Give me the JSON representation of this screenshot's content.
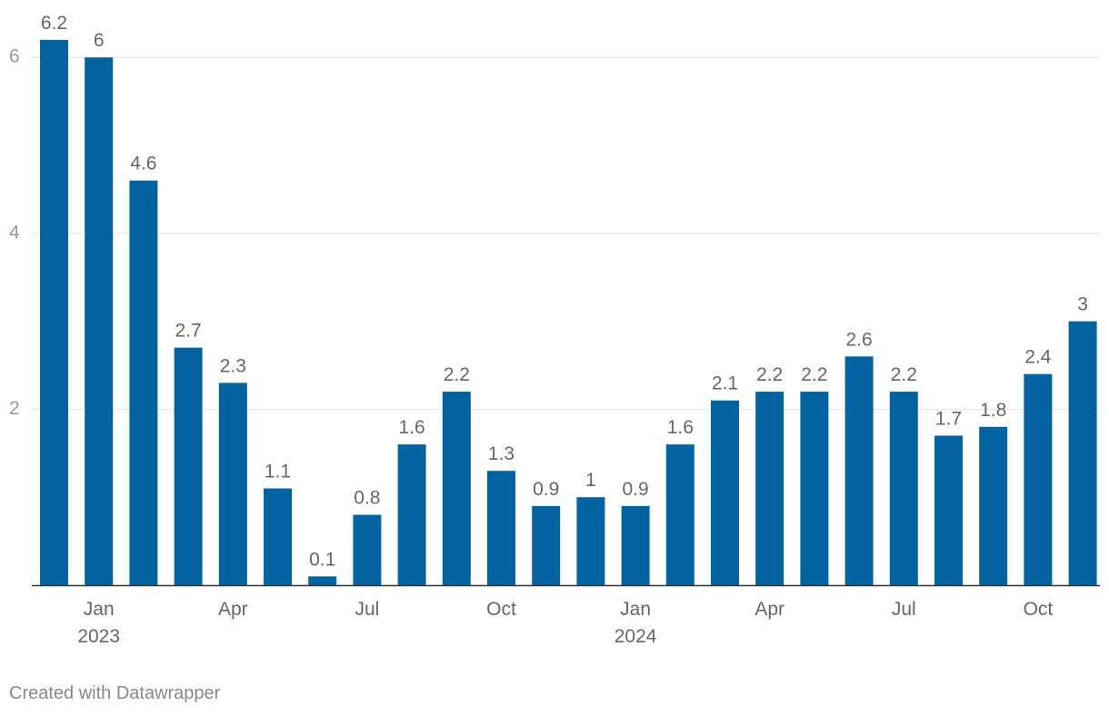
{
  "chart_data": {
    "type": "bar",
    "categories": [
      "Dec 2022",
      "Jan 2023",
      "Feb 2023",
      "Mar 2023",
      "Apr 2023",
      "May 2023",
      "Jun 2023",
      "Jul 2023",
      "Aug 2023",
      "Sep 2023",
      "Oct 2023",
      "Nov 2023",
      "Dec 2023",
      "Jan 2024",
      "Feb 2024",
      "Mar 2024",
      "Apr 2024",
      "May 2024",
      "Jun 2024",
      "Jul 2024",
      "Aug 2024",
      "Sep 2024",
      "Oct 2024",
      "Nov 2024"
    ],
    "values": [
      6.2,
      6,
      4.6,
      2.7,
      2.3,
      1.1,
      0.1,
      0.8,
      1.6,
      2.2,
      1.3,
      0.9,
      1,
      0.9,
      1.6,
      2.1,
      2.2,
      2.2,
      2.6,
      2.2,
      1.7,
      1.8,
      2.4,
      3
    ],
    "value_labels": [
      "6.2",
      "6",
      "4.6",
      "2.7",
      "2.3",
      "1.1",
      "0.1",
      "0.8",
      "1.6",
      "2.2",
      "1.3",
      "0.9",
      "1",
      "0.9",
      "1.6",
      "2.1",
      "2.2",
      "2.2",
      "2.6",
      "2.2",
      "1.7",
      "1.8",
      "2.4",
      "3"
    ],
    "y_ticks": [
      {
        "value": 2,
        "label": "2"
      },
      {
        "value": 4,
        "label": "4"
      },
      {
        "value": 6,
        "label": "6"
      }
    ],
    "x_ticks": [
      {
        "index": 1,
        "label": "Jan",
        "sublabel": "2023"
      },
      {
        "index": 4,
        "label": "Apr",
        "sublabel": ""
      },
      {
        "index": 7,
        "label": "Jul",
        "sublabel": ""
      },
      {
        "index": 10,
        "label": "Oct",
        "sublabel": ""
      },
      {
        "index": 13,
        "label": "Jan",
        "sublabel": "2024"
      },
      {
        "index": 16,
        "label": "Apr",
        "sublabel": ""
      },
      {
        "index": 19,
        "label": "Jul",
        "sublabel": ""
      },
      {
        "index": 22,
        "label": "Oct",
        "sublabel": ""
      }
    ],
    "ylim": [
      0,
      6.2
    ],
    "grid": true,
    "bar_color": "#0464a1"
  },
  "footer": {
    "credit": "Created with Datawrapper"
  }
}
